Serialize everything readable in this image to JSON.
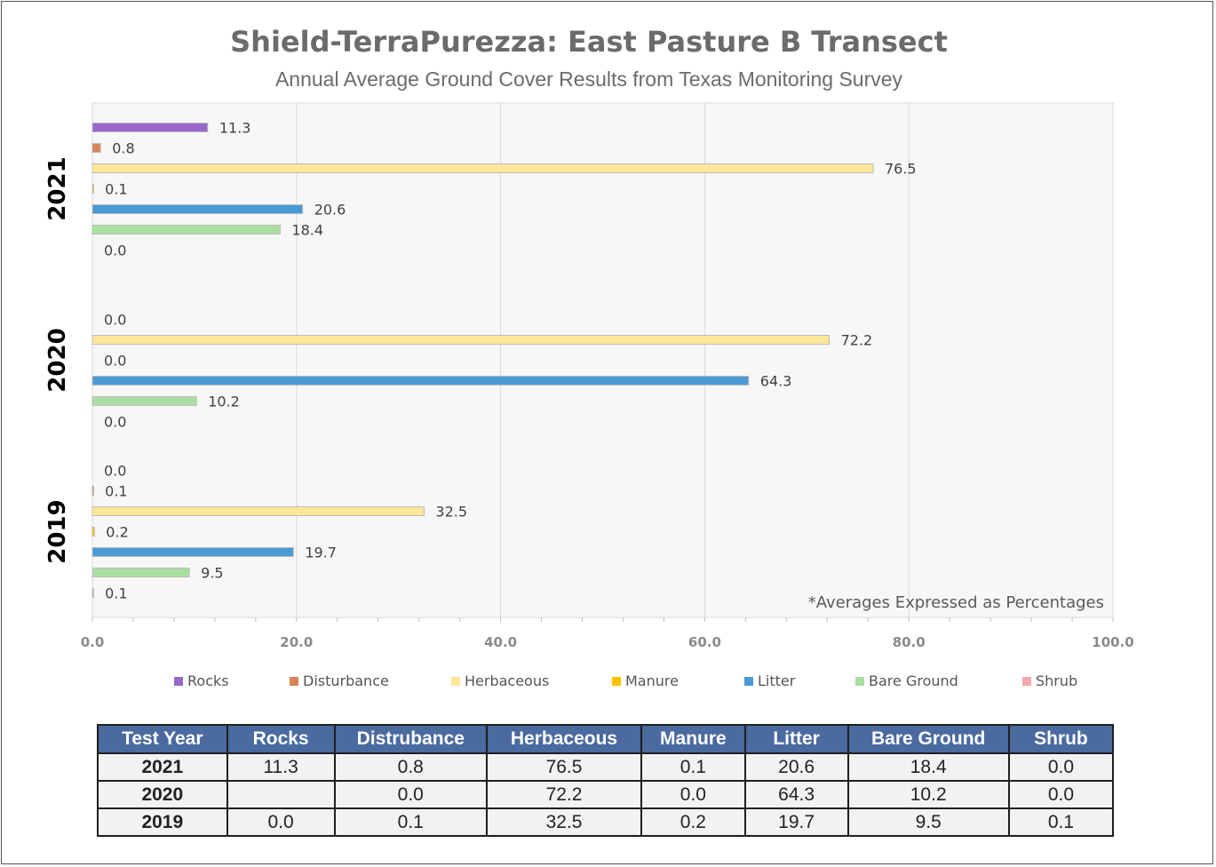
{
  "title": "Shield-TerraPurezza: East Pasture B Transect",
  "subtitle": "Annual Average Ground Cover Results from Texas Monitoring Survey",
  "note": "*Averages Expressed as Percentages",
  "colors": {
    "Rocks": "#9966cc",
    "Disturbance": "#d9855a",
    "Herbaceous": "#ffe699",
    "Manure": "#ffc000",
    "Litter": "#4a9ad6",
    "Bare Ground": "#a9dfa0",
    "Shrub": "#f4a7ad"
  },
  "chart_data": {
    "type": "bar",
    "orientation": "horizontal",
    "title": "Shield-TerraPurezza: East Pasture B Transect",
    "subtitle": "Annual Average Ground Cover Results from Texas Monitoring Survey",
    "categories": [
      "2021",
      "2020",
      "2019"
    ],
    "x_ticks": [
      "0.0",
      "20.0",
      "40.0",
      "60.0",
      "80.0",
      "100.0"
    ],
    "xlim": [
      0,
      100
    ],
    "grid": true,
    "legend_position": "bottom",
    "series": [
      {
        "name": "Rocks",
        "values": [
          11.3,
          null,
          0.0
        ],
        "labels": [
          "11.3",
          "",
          "0.0"
        ]
      },
      {
        "name": "Disturbance",
        "values": [
          0.8,
          0.0,
          0.1
        ],
        "labels": [
          "0.8",
          "0.0",
          "0.1"
        ]
      },
      {
        "name": "Herbaceous",
        "values": [
          76.5,
          72.2,
          32.5
        ],
        "labels": [
          "76.5",
          "72.2",
          "32.5"
        ]
      },
      {
        "name": "Manure",
        "values": [
          0.1,
          0.0,
          0.2
        ],
        "labels": [
          "0.1",
          "0.0",
          "0.2"
        ]
      },
      {
        "name": "Litter",
        "values": [
          20.6,
          64.3,
          19.7
        ],
        "labels": [
          "20.6",
          "64.3",
          "19.7"
        ]
      },
      {
        "name": "Bare Ground",
        "values": [
          18.4,
          10.2,
          9.5
        ],
        "labels": [
          "18.4",
          "10.2",
          "9.5"
        ]
      },
      {
        "name": "Shrub",
        "values": [
          0.0,
          0.0,
          0.1
        ],
        "labels": [
          "0.0",
          "0.0",
          "0.1"
        ]
      }
    ]
  },
  "table": {
    "headers": [
      "Test Year",
      "Rocks",
      "Distrubance",
      "Herbaceous",
      "Manure",
      "Litter",
      "Bare Ground",
      "Shrub"
    ],
    "rows": [
      [
        "2021",
        "11.3",
        "0.8",
        "76.5",
        "0.1",
        "20.6",
        "18.4",
        "0.0"
      ],
      [
        "2020",
        "",
        "0.0",
        "72.2",
        "0.0",
        "64.3",
        "10.2",
        "0.0"
      ],
      [
        "2019",
        "0.0",
        "0.1",
        "32.5",
        "0.2",
        "19.7",
        "9.5",
        "0.1"
      ]
    ]
  }
}
